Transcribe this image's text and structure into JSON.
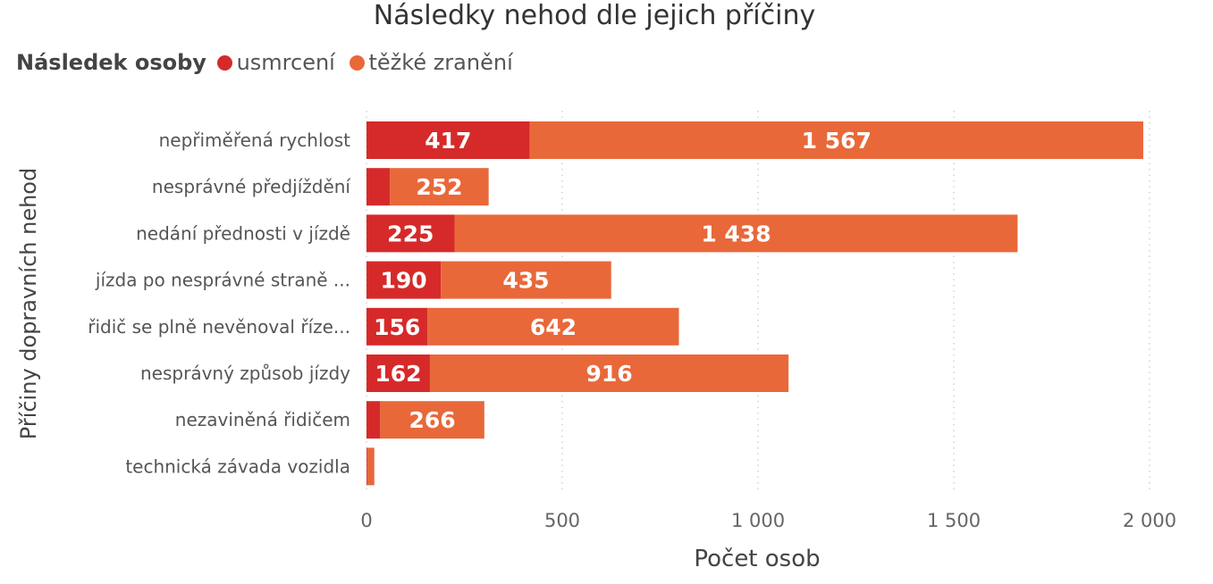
{
  "chart_data": {
    "type": "bar",
    "orientation": "horizontal",
    "stacked": true,
    "title": "Následky nehod dle jejich příčiny",
    "xlabel": "Počet osob",
    "ylabel": "Příčiny dopravních nehod",
    "legend": {
      "title": "Následek osoby",
      "position": "top-left",
      "entries": [
        "usmrcení",
        "těžké zranění"
      ]
    },
    "categories": [
      "nepřiměřená rychlost",
      "nesprávné předjíždění",
      "nedání přednosti v jízdě",
      "jízda po nesprávné straně ...",
      "řidič se plně nevěnoval říze...",
      "nesprávný způsob jízdy",
      "nezaviněná řidičem",
      "technická závada vozidla"
    ],
    "series": [
      {
        "name": "usmrcení",
        "color": "#d62a2a",
        "values": [
          417,
          60,
          225,
          190,
          156,
          162,
          35,
          2
        ],
        "labels": [
          "417",
          "",
          "225",
          "190",
          "156",
          "162",
          "",
          ""
        ]
      },
      {
        "name": "těžké zranění",
        "color": "#e8683a",
        "values": [
          1567,
          252,
          1438,
          435,
          642,
          916,
          266,
          18
        ],
        "labels": [
          "1 567",
          "252",
          "1 438",
          "435",
          "642",
          "916",
          "266",
          ""
        ]
      }
    ],
    "xlim": [
      0,
      2000
    ],
    "xticks": [
      0,
      500,
      1000,
      1500,
      2000
    ],
    "xtick_labels": [
      "0",
      "500",
      "1 000",
      "1 500",
      "2 000"
    ],
    "grid": "vertical dotted"
  }
}
